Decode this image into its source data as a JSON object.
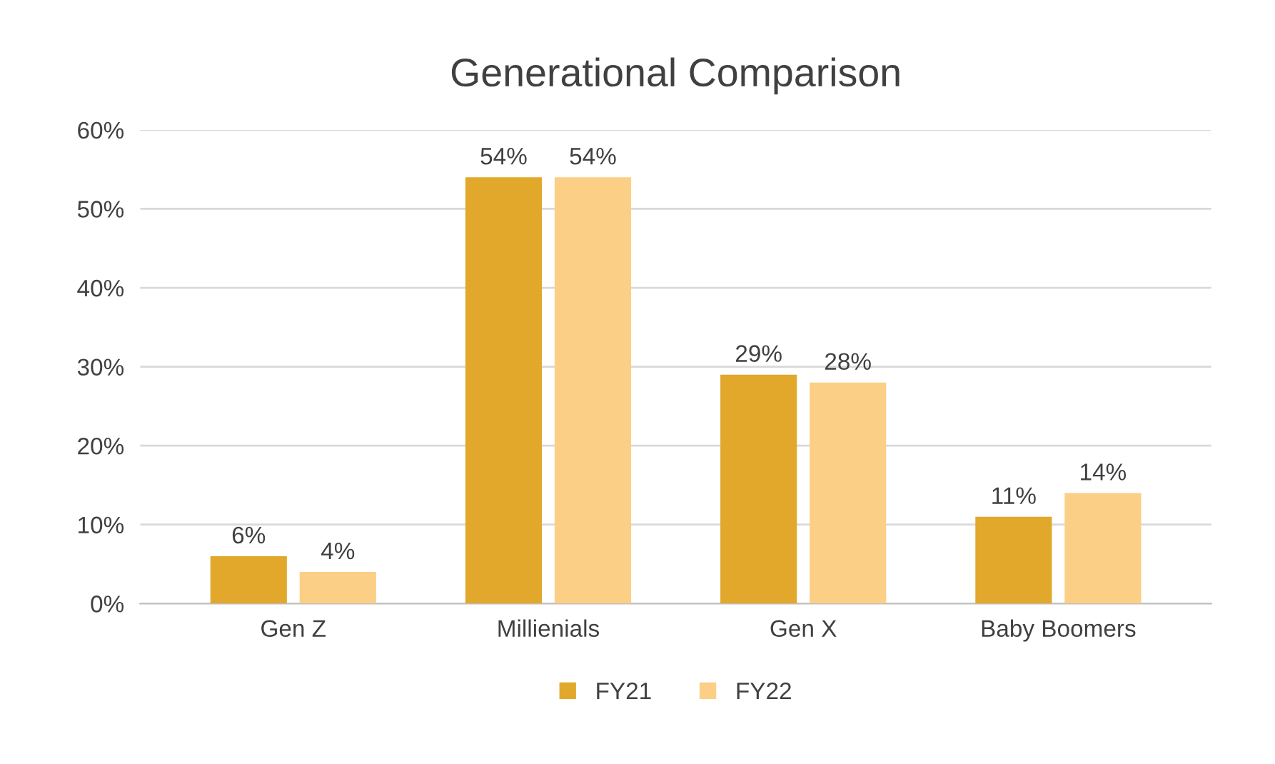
{
  "chart_data": {
    "type": "bar",
    "title": "Generational Comparison",
    "categories": [
      "Gen Z",
      "Millienials",
      "Gen X",
      "Baby Boomers"
    ],
    "series": [
      {
        "name": "FY21",
        "color": "#e2a82c",
        "values": [
          6,
          54,
          29,
          11
        ],
        "value_labels": [
          "6%",
          "54%",
          "29%",
          "11%"
        ]
      },
      {
        "name": "FY22",
        "color": "#fccf86",
        "values": [
          4,
          54,
          28,
          14
        ],
        "value_labels": [
          "4%",
          "54%",
          "28%",
          "14%"
        ]
      }
    ],
    "ylim": [
      0,
      60
    ],
    "yticks": [
      {
        "value": 0,
        "label": "0%"
      },
      {
        "value": 10,
        "label": "10%"
      },
      {
        "value": 20,
        "label": "20%"
      },
      {
        "value": 30,
        "label": "30%"
      },
      {
        "value": 40,
        "label": "40%"
      },
      {
        "value": 50,
        "label": "50%"
      },
      {
        "value": 60,
        "label": "60%"
      }
    ],
    "grid": "y",
    "legend": "bottom"
  }
}
